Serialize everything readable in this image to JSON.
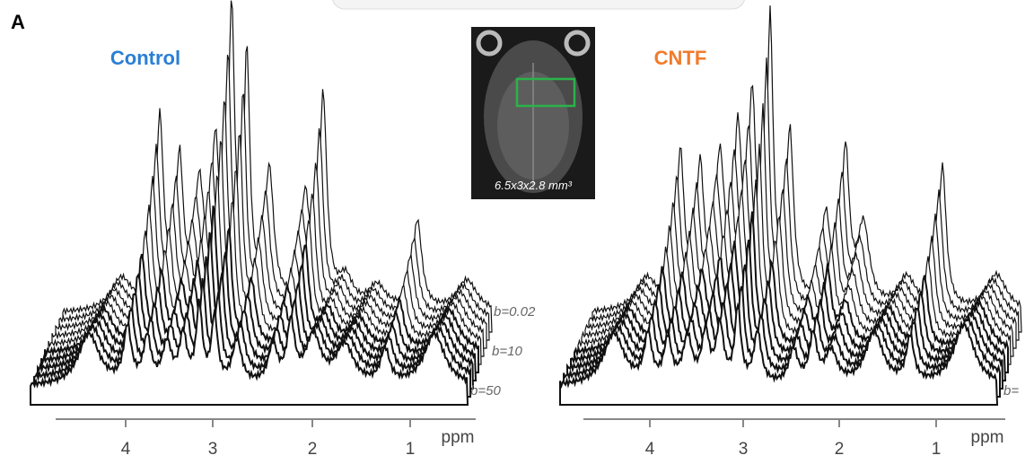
{
  "panel_label": "A",
  "inset": {
    "caption": "6.5x3x2.8 mm³"
  },
  "panels": [
    {
      "title": "Control",
      "b_labels": [
        "b=0.02",
        "b=10",
        "b=50"
      ],
      "axis_ticks": [
        "4",
        "3",
        "2",
        "1"
      ],
      "axis_unit": "ppm"
    },
    {
      "title": "CNTF",
      "b_labels": [
        "b="
      ],
      "axis_ticks": [
        "4",
        "3",
        "2",
        "1"
      ],
      "axis_unit": "ppm"
    }
  ]
}
